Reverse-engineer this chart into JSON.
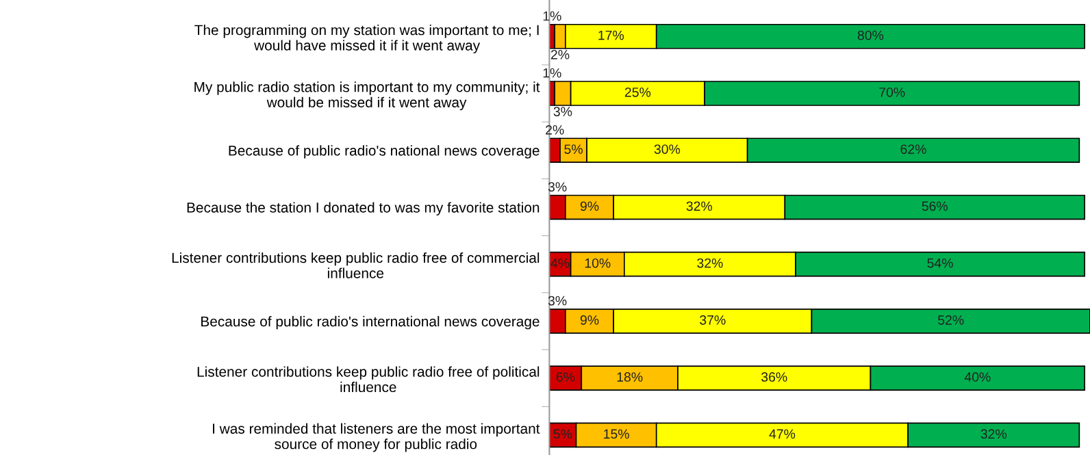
{
  "chart_data": {
    "type": "bar",
    "orientation": "horizontal",
    "stacked": true,
    "categories": [
      "The programming on my station was important to me; I\nwould have missed it if it went away",
      "My public radio station is important to my community; it\nwould be missed if it went away",
      "Because of public radio's national news coverage",
      "Because the station I donated to was my favorite station",
      "Listener contributions keep public radio free of commercial\ninfluence",
      "Because of public radio's international news coverage",
      "Listener contributions keep public radio free of political\ninfluence",
      "I was reminded that listeners are the most important\nsource of money for public radio"
    ],
    "series": [
      {
        "color": "#d40000",
        "values": [
          1,
          1,
          2,
          3,
          4,
          3,
          6,
          5
        ],
        "value_labels": [
          "1%",
          "1%",
          "2%",
          "3%",
          "4%",
          "3%",
          "6%",
          "5%"
        ]
      },
      {
        "color": "#ffc000",
        "values": [
          2,
          3,
          5,
          9,
          10,
          9,
          18,
          15
        ],
        "value_labels": [
          "2%",
          "3%",
          "5%",
          "9%",
          "10%",
          "9%",
          "18%",
          "15%"
        ]
      },
      {
        "color": "#ffff00",
        "values": [
          17,
          25,
          30,
          32,
          32,
          37,
          36,
          47
        ],
        "value_labels": [
          "17%",
          "25%",
          "30%",
          "32%",
          "32%",
          "37%",
          "36%",
          "47%"
        ]
      },
      {
        "color": "#00b050",
        "values": [
          80,
          70,
          62,
          56,
          54,
          52,
          40,
          32
        ],
        "value_labels": [
          "80%",
          "70%",
          "62%",
          "56%",
          "54%",
          "52%",
          "40%",
          "32%"
        ]
      }
    ],
    "tick_labels": "y"
  }
}
